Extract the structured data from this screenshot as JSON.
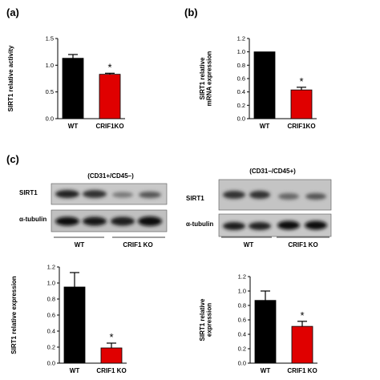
{
  "panel_labels": [
    "(a)",
    "(b)",
    "(c)"
  ],
  "blots": [
    {
      "title": "(CD31+/CD45–)",
      "rows": [
        "SIRT1",
        "α-tubulin"
      ],
      "groups": [
        "WT",
        "CRIF1 KO"
      ]
    },
    {
      "title": "(CD31–/CD45+)",
      "rows": [
        "SIRT1",
        "α-tubulin"
      ],
      "groups": [
        "WT",
        "CRIF1 KO"
      ]
    }
  ],
  "colors": {
    "WT": "#000000",
    "KO": "#e00000"
  },
  "chart_data": [
    {
      "type": "bar",
      "panel": "(a)",
      "ylabel": "SIRT1 relative activity",
      "ylim": [
        0,
        1.5
      ],
      "yticks": [
        "0.0",
        "0.5",
        "1.0",
        "1.5"
      ],
      "categories": [
        "WT",
        "CRIF1KO"
      ],
      "values": [
        1.13,
        0.83
      ],
      "errors": [
        0.07,
        0.02
      ],
      "annotations": [
        "",
        "*"
      ]
    },
    {
      "type": "bar",
      "panel": "(b)",
      "ylabel": "SIRT1 relative mRNA expression",
      "ylim": [
        0,
        1.2
      ],
      "yticks": [
        "0.0",
        "0.2",
        "0.4",
        "0.6",
        "0.8",
        "1.0",
        "1.2"
      ],
      "categories": [
        "WT",
        "CRIF1KO"
      ],
      "values": [
        1.0,
        0.43
      ],
      "errors": [
        0.0,
        0.04
      ],
      "annotations": [
        "",
        "*"
      ]
    },
    {
      "type": "bar",
      "panel": "(c) left",
      "ylabel": "SIRT1 relative expression",
      "ylim": [
        0,
        1.2
      ],
      "yticks": [
        "0.0",
        "0.2",
        "0.4",
        "0.6",
        "0.8",
        "1.0",
        "1.2"
      ],
      "categories": [
        "WT",
        "CRIF1 KO"
      ],
      "values": [
        0.95,
        0.19
      ],
      "errors": [
        0.18,
        0.06
      ],
      "annotations": [
        "",
        "*"
      ]
    },
    {
      "type": "bar",
      "panel": "(c) right",
      "ylabel": "SIRT1 relative expression",
      "ylim": [
        0,
        1.2
      ],
      "yticks": [
        "0.0",
        "0.2",
        "0.4",
        "0.6",
        "0.8",
        "1.0",
        "1.2"
      ],
      "categories": [
        "WT",
        "CRIF1 KO"
      ],
      "values": [
        0.87,
        0.51
      ],
      "errors": [
        0.13,
        0.07
      ],
      "annotations": [
        "",
        "*"
      ]
    }
  ]
}
